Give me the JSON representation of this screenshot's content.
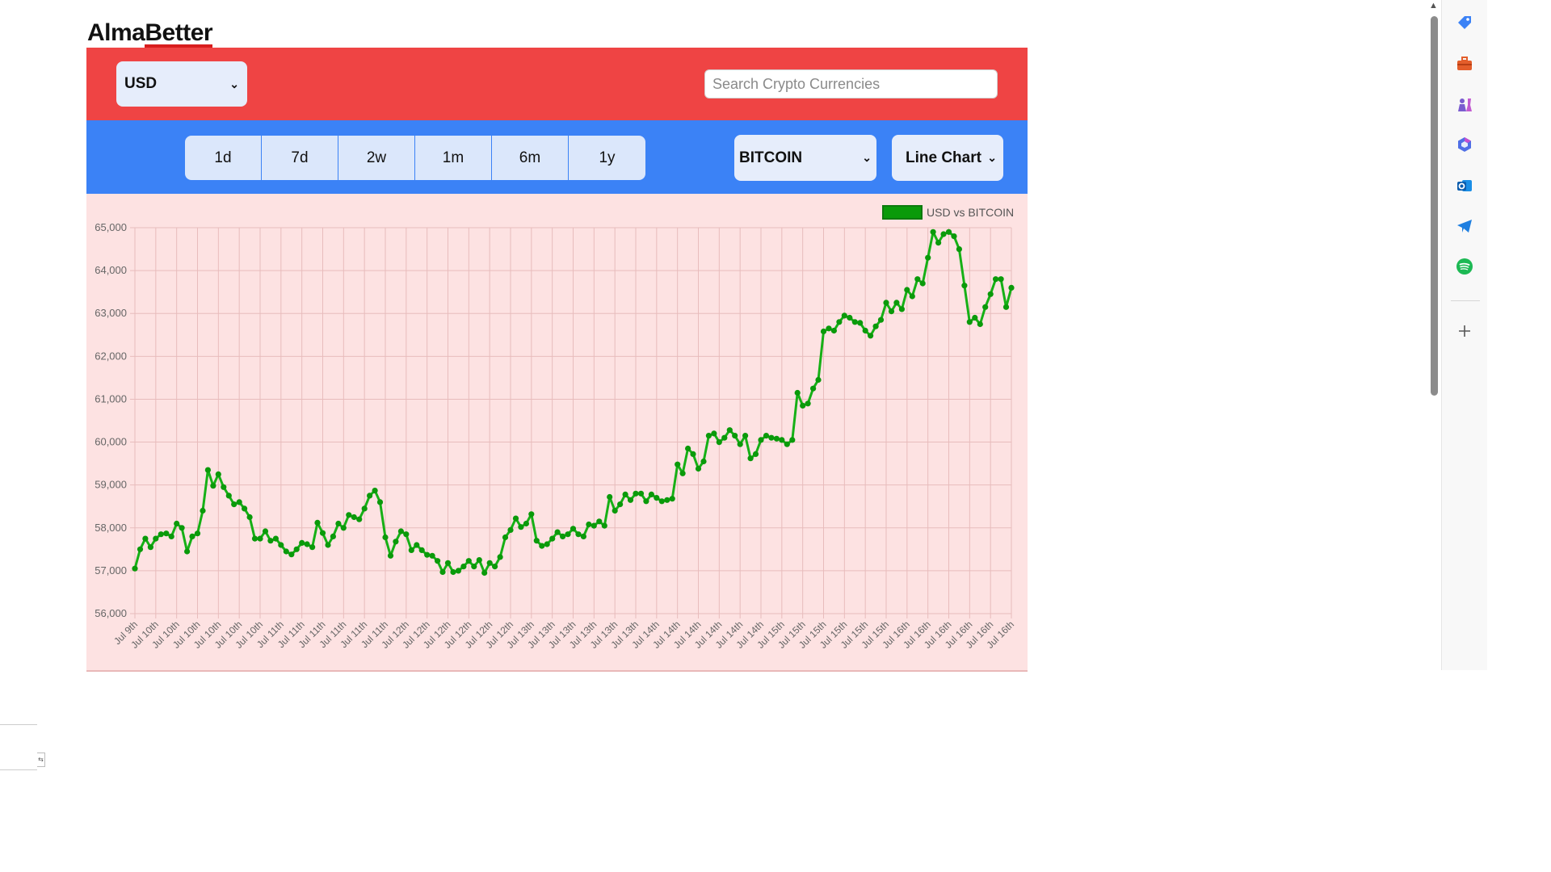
{
  "brand": {
    "part1": "Alma",
    "part2": "Better"
  },
  "header": {
    "currency": "USD",
    "search_placeholder": "Search Crypto Currencies"
  },
  "toolbar": {
    "ranges": [
      "1d",
      "7d",
      "2w",
      "1m",
      "6m",
      "1y"
    ],
    "coin": "BITCOIN",
    "chart_type": "Line Chart"
  },
  "colors": {
    "topbar": "#ef4444",
    "navbar": "#3b82f6",
    "chart_bg": "#fde2e2",
    "line": "#16b016",
    "point": "#0a9a0a"
  },
  "chart_data": {
    "type": "line",
    "title": "",
    "legend": "USD vs BITCOIN",
    "legend_position": "top-right",
    "ylim": [
      56000,
      65000
    ],
    "yticks": [
      56000,
      57000,
      58000,
      59000,
      60000,
      61000,
      62000,
      63000,
      64000,
      65000
    ],
    "ytick_labels": [
      "56,000",
      "57,000",
      "58,000",
      "59,000",
      "60,000",
      "61,000",
      "62,000",
      "63,000",
      "64,000",
      "65,000"
    ],
    "xtick_labels": [
      "Jul 9th",
      "Jul 10th",
      "Jul 10th",
      "Jul 10th",
      "Jul 10th",
      "Jul 10th",
      "Jul 10th",
      "Jul 11th",
      "Jul 11th",
      "Jul 11th",
      "Jul 11th",
      "Jul 11th",
      "Jul 11th",
      "Jul 12th",
      "Jul 12th",
      "Jul 12th",
      "Jul 12th",
      "Jul 12th",
      "Jul 12th",
      "Jul 13th",
      "Jul 13th",
      "Jul 13th",
      "Jul 13th",
      "Jul 13th",
      "Jul 13th",
      "Jul 14th",
      "Jul 14th",
      "Jul 14th",
      "Jul 14th",
      "Jul 14th",
      "Jul 14th",
      "Jul 15th",
      "Jul 15th",
      "Jul 15th",
      "Jul 15th",
      "Jul 15th",
      "Jul 15th",
      "Jul 16th",
      "Jul 16th",
      "Jul 16th",
      "Jul 16th",
      "Jul 16th",
      "Jul 16th"
    ],
    "values": [
      57050,
      57500,
      57750,
      57550,
      57750,
      57850,
      57870,
      57800,
      58100,
      58000,
      57450,
      57800,
      57870,
      58400,
      59350,
      58980,
      59250,
      58950,
      58750,
      58550,
      58600,
      58450,
      58250,
      57750,
      57750,
      57920,
      57700,
      57750,
      57600,
      57450,
      57380,
      57500,
      57650,
      57620,
      57550,
      58120,
      57880,
      57600,
      57800,
      58100,
      58000,
      58300,
      58250,
      58200,
      58450,
      58750,
      58870,
      58600,
      57780,
      57350,
      57680,
      57920,
      57850,
      57480,
      57600,
      57480,
      57370,
      57350,
      57230,
      56970,
      57180,
      56970,
      57000,
      57100,
      57230,
      57100,
      57250,
      56950,
      57180,
      57100,
      57320,
      57780,
      57950,
      58220,
      58020,
      58100,
      58320,
      57700,
      57580,
      57620,
      57750,
      57900,
      57800,
      57850,
      57980,
      57850,
      57800,
      58080,
      58050,
      58150,
      58050,
      58720,
      58400,
      58550,
      58780,
      58650,
      58800,
      58800,
      58620,
      58780,
      58700,
      58620,
      58650,
      58680,
      59480,
      59270,
      59850,
      59720,
      59380,
      59550,
      60150,
      60200,
      60000,
      60100,
      60280,
      60150,
      59950,
      60150,
      59620,
      59720,
      60050,
      60150,
      60100,
      60080,
      60050,
      59950,
      60050,
      61150,
      60850,
      60900,
      61250,
      61450,
      62580,
      62650,
      62600,
      62800,
      62950,
      62900,
      62800,
      62780,
      62600,
      62480,
      62700,
      62850,
      63250,
      63050,
      63250,
      63100,
      63550,
      63400,
      63800,
      63700,
      64300,
      64900,
      64650,
      64850,
      64900,
      64800,
      64500,
      63650,
      62800,
      62900,
      62750,
      63150,
      63450,
      63800,
      63800,
      63150,
      63600
    ]
  }
}
